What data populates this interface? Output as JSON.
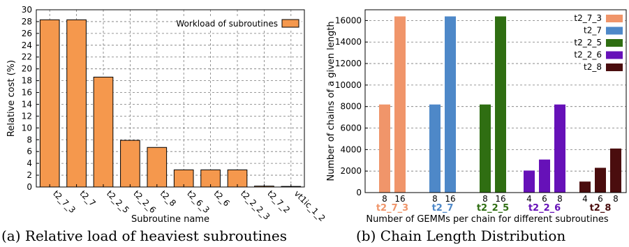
{
  "chart_data": [
    {
      "type": "bar",
      "caption": "(a) Relative load of heaviest subroutines",
      "xlabel": "Subroutine name",
      "ylabel": "Relative cost (%)",
      "ylim": [
        0,
        30
      ],
      "ytick_step": 2,
      "grid": "dashed-both",
      "legend": {
        "label": "Workload of subroutines",
        "position": "top-right"
      },
      "categories": [
        "t2_7_3",
        "t2_7",
        "t2_2_5",
        "t2_2_6",
        "t2_8",
        "t2_6_3",
        "t2_6",
        "t2_2_2_3",
        "t2_7_2",
        "vt1ic_1_2"
      ],
      "values": [
        28.3,
        28.3,
        18.6,
        7.9,
        6.7,
        2.9,
        2.9,
        2.9,
        0.15,
        0.1
      ],
      "colors": {
        "bar": "#f5984d",
        "edge": "#000000"
      }
    },
    {
      "type": "bar",
      "caption": "(b) Chain Length Distribution",
      "xlabel": "Number of GEMMs per chain for different subroutines",
      "ylabel": "Number of chains of a given length",
      "ylim": [
        0,
        17000
      ],
      "ytick_step": 2000,
      "grid": "dashed-horizontal",
      "legend_position": "top-right",
      "groups": [
        {
          "name": "t2_7_3",
          "color": "#f0956a",
          "categories": [
            "8",
            "16"
          ],
          "values": [
            8192,
            16384
          ]
        },
        {
          "name": "t2_7",
          "color": "#4e88c8",
          "categories": [
            "8",
            "16"
          ],
          "values": [
            8192,
            16384
          ]
        },
        {
          "name": "t2_2_5",
          "color": "#2f6e12",
          "categories": [
            "8",
            "16"
          ],
          "values": [
            8192,
            16384
          ]
        },
        {
          "name": "t2_2_6",
          "color": "#6611b8",
          "categories": [
            "4",
            "6",
            "8"
          ],
          "values": [
            2048,
            3072,
            8192
          ]
        },
        {
          "name": "t2_8",
          "color": "#4a0d0e",
          "categories": [
            "4",
            "6",
            "8"
          ],
          "values": [
            1024,
            2304,
            4096
          ]
        }
      ]
    }
  ]
}
